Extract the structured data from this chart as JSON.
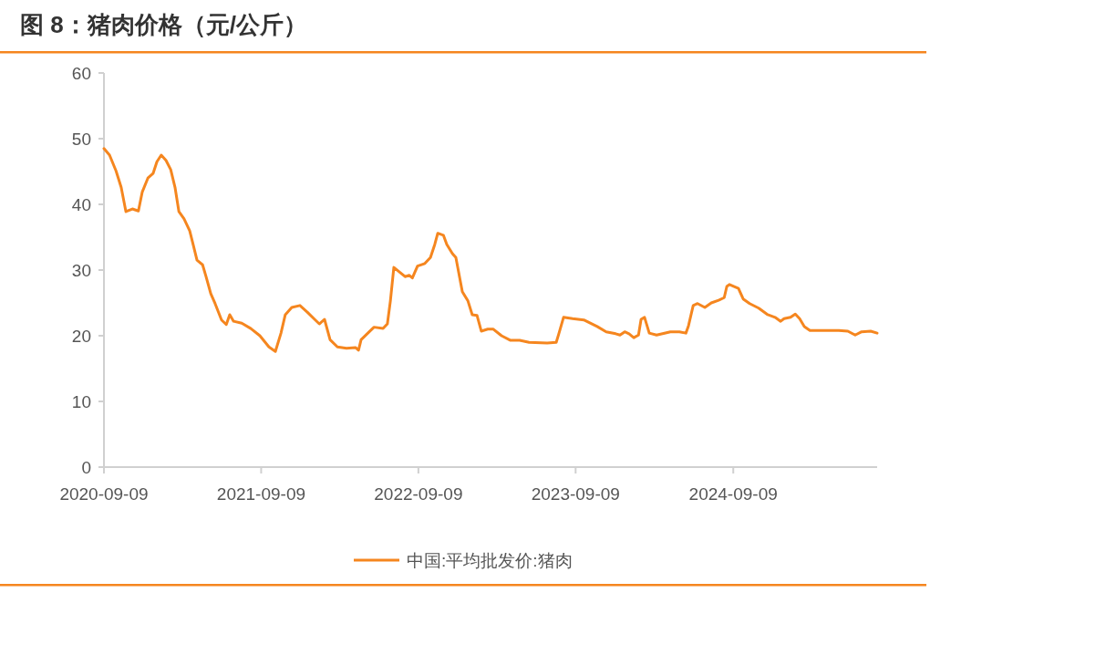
{
  "chart_data": {
    "type": "line",
    "title": "图 8：猪肉价格（元/公斤）",
    "x": [
      "2020-09-09",
      "2020-09-22",
      "2020-10-07",
      "2020-10-19",
      "2020-10-30",
      "2020-11-14",
      "2020-11-28",
      "2020-12-07",
      "2020-12-20",
      "2021-01-01",
      "2021-01-10",
      "2021-01-20",
      "2021-01-31",
      "2021-02-11",
      "2021-02-21",
      "2021-03-02",
      "2021-03-14",
      "2021-03-27",
      "2021-04-04",
      "2021-04-13",
      "2021-04-26",
      "2021-05-04",
      "2021-05-15",
      "2021-05-25",
      "2021-06-09",
      "2021-06-20",
      "2021-06-28",
      "2021-07-07",
      "2021-07-26",
      "2021-08-16",
      "2021-09-06",
      "2021-09-27",
      "2021-10-12",
      "2021-10-25",
      "2021-11-04",
      "2021-11-19",
      "2021-12-08",
      "2021-12-25",
      "2022-01-11",
      "2022-01-22",
      "2022-02-03",
      "2022-02-16",
      "2022-03-05",
      "2022-03-26",
      "2022-04-16",
      "2022-04-23",
      "2022-04-29",
      "2022-05-18",
      "2022-05-29",
      "2022-06-19",
      "2022-06-29",
      "2022-07-06",
      "2022-07-14",
      "2022-07-27",
      "2022-08-09",
      "2022-08-19",
      "2022-08-26",
      "2022-09-07",
      "2022-09-24",
      "2022-10-07",
      "2022-10-17",
      "2022-10-24",
      "2022-11-06",
      "2022-11-14",
      "2022-11-27",
      "2022-12-05",
      "2022-12-20",
      "2023-01-02",
      "2023-01-12",
      "2023-01-23",
      "2023-02-02",
      "2023-02-17",
      "2023-03-02",
      "2023-03-21",
      "2023-04-11",
      "2023-05-02",
      "2023-05-24",
      "2023-07-05",
      "2023-07-26",
      "2023-08-01",
      "2023-08-12",
      "2023-09-02",
      "2023-09-28",
      "2023-10-29",
      "2023-11-19",
      "2023-12-11",
      "2023-12-21",
      "2024-01-01",
      "2024-01-11",
      "2024-01-22",
      "2024-02-02",
      "2024-02-08",
      "2024-02-16",
      "2024-02-27",
      "2024-03-15",
      "2024-04-16",
      "2024-05-07",
      "2024-05-22",
      "2024-05-28",
      "2024-06-08",
      "2024-06-18",
      "2024-07-05",
      "2024-07-20",
      "2024-08-06",
      "2024-08-19",
      "2024-08-25",
      "2024-08-31",
      "2024-09-21",
      "2024-10-02",
      "2024-10-17",
      "2024-11-07",
      "2024-11-28",
      "2024-12-15",
      "2024-12-28",
      "2025-01-05",
      "2025-01-20",
      "2025-01-31",
      "2025-02-10",
      "2025-02-21",
      "2025-03-06",
      "2025-03-31",
      "2025-05-12",
      "2025-06-02",
      "2025-06-19",
      "2025-07-04",
      "2025-07-25",
      "2025-08-09"
    ],
    "series": [
      {
        "name": "中国:平均批发价:猪肉",
        "color": "#f5861f",
        "values": [
          48.5,
          47.5,
          45.1,
          42.6,
          38.9,
          39.3,
          39,
          41.9,
          44,
          44.7,
          46.5,
          47.5,
          46.7,
          45.3,
          42.6,
          38.9,
          37.8,
          36,
          33.9,
          31.5,
          30.8,
          29,
          26.4,
          24.9,
          22.4,
          21.7,
          23.2,
          22.2,
          21.9,
          21.1,
          20,
          18.3,
          17.6,
          20.4,
          23.2,
          24.3,
          24.6,
          23.6,
          22.5,
          21.8,
          22.5,
          19.4,
          18.3,
          18.1,
          18.2,
          17.8,
          19.4,
          20.6,
          21.3,
          21.1,
          21.8,
          25.3,
          30.4,
          29.7,
          29,
          29.2,
          28.8,
          30.6,
          31,
          31.9,
          33.9,
          35.6,
          35.3,
          33.9,
          32.5,
          31.9,
          26.7,
          25.3,
          23.2,
          23.1,
          20.7,
          21,
          21,
          20,
          19.3,
          19.3,
          19,
          18.9,
          19,
          20.3,
          22.8,
          22.6,
          22.4,
          21.4,
          20.6,
          20.3,
          20.1,
          20.6,
          20.3,
          19.7,
          20.1,
          22.5,
          22.8,
          20.4,
          20.1,
          20.6,
          20.6,
          20.4,
          21.5,
          24.6,
          24.9,
          24.3,
          25,
          25.4,
          25.8,
          27.5,
          27.8,
          27.2,
          25.6,
          24.9,
          24.2,
          23.2,
          22.8,
          22.2,
          22.6,
          22.8,
          23.3,
          22.6,
          21.4,
          20.8,
          20.8,
          20.8,
          20.7,
          20.1,
          20.6,
          20.7,
          20.4
        ]
      }
    ],
    "xlim": [
      "2020-09-09",
      "2025-08-09"
    ],
    "xticks": [
      "2020-09-09",
      "2021-09-09",
      "2022-09-09",
      "2023-09-09",
      "2024-09-09"
    ],
    "ylim": [
      0,
      60
    ],
    "yticks": [
      0,
      10,
      20,
      30,
      40,
      50,
      60
    ],
    "legend": "bottom",
    "grid": false
  }
}
